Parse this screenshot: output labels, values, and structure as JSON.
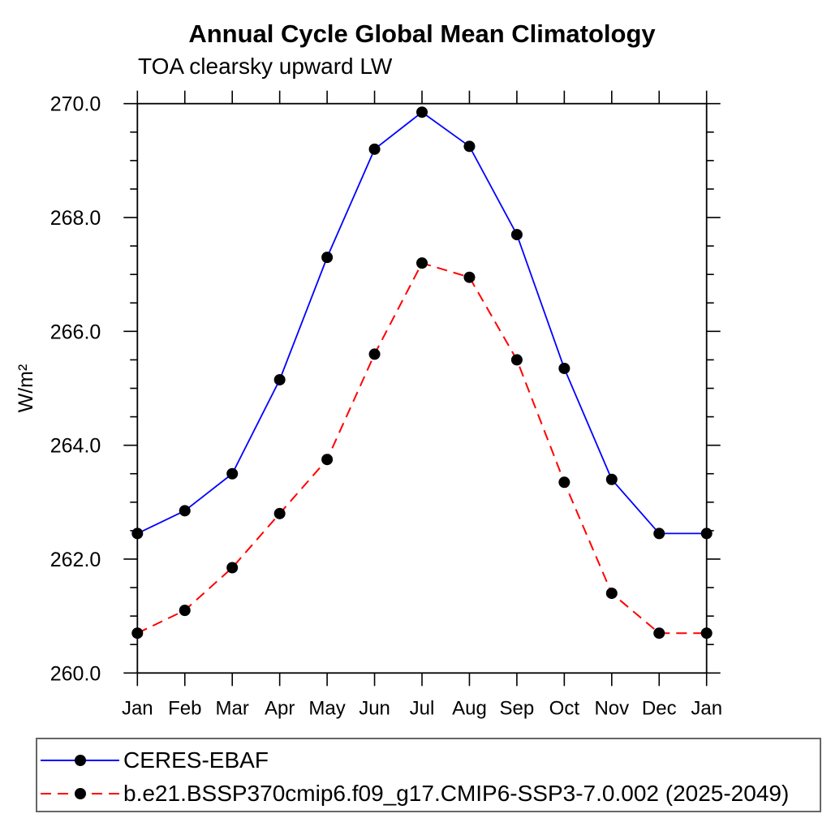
{
  "chart": {
    "title": "Annual Cycle Global Mean Climatology",
    "subtitle": "TOA clearsky upward LW"
  },
  "chart_data": {
    "type": "line",
    "title": "Annual Cycle Global Mean Climatology",
    "subtitle": "TOA clearsky upward LW",
    "xlabel": "",
    "ylabel": "W/m²",
    "categories": [
      "Jan",
      "Feb",
      "Mar",
      "Apr",
      "May",
      "Jun",
      "Jul",
      "Aug",
      "Sep",
      "Oct",
      "Nov",
      "Dec",
      "Jan"
    ],
    "ylim": [
      260.0,
      270.0
    ],
    "ytick_major": 2.0,
    "ytick_minor": 0.5,
    "ytick_labels": [
      "260.0",
      "262.0",
      "264.0",
      "266.0",
      "268.0",
      "270.0"
    ],
    "grid": false,
    "legend_position": "bottom-left",
    "marker": {
      "shape": "circle",
      "color": "#000000",
      "radius": 7
    },
    "axis_color": "#000000",
    "series": [
      {
        "name": "CERES-EBAF",
        "color": "#0000ff",
        "style": "solid",
        "values": [
          262.45,
          262.85,
          263.5,
          265.15,
          267.3,
          269.2,
          269.85,
          269.25,
          267.7,
          265.35,
          263.4,
          262.45,
          262.45
        ]
      },
      {
        "name": "b.e21.BSSP370cmip6.f09_g17.CMIP6-SSP3-7.0.002 (2025-2049)",
        "color": "#ff0000",
        "style": "dashed",
        "values": [
          260.7,
          261.1,
          261.85,
          262.8,
          263.75,
          265.6,
          267.2,
          266.95,
          265.5,
          263.35,
          261.4,
          260.7,
          260.7
        ]
      }
    ]
  }
}
